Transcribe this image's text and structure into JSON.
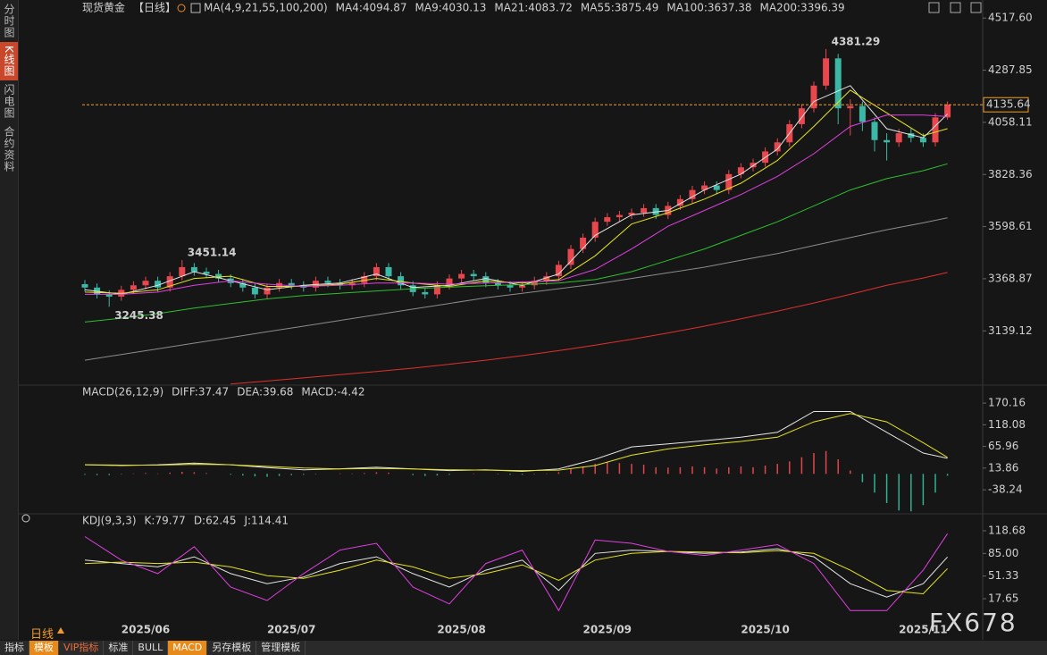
{
  "sidebar": [
    "分时图",
    "K线图",
    "闪电图",
    "合约资料"
  ],
  "period_label": "日线",
  "toolbar": [
    "指标",
    "模板",
    "VIP指标",
    "标准",
    "BULL",
    "MACD",
    "另存模板",
    "管理模板"
  ],
  "watermark": "FX678",
  "chart_data": [
    {
      "type": "candlestick",
      "title": "现货黄金",
      "subtitle": "【日线】",
      "indicator": "MA(4,9,21,55,100,200)",
      "categories": [
        null,
        null,
        null,
        null,
        null,
        "2025/06",
        null,
        null,
        null,
        null,
        null,
        null,
        null,
        null,
        null,
        null,
        null,
        "2025/07",
        null,
        null,
        null,
        null,
        null,
        null,
        null,
        null,
        null,
        null,
        null,
        null,
        null,
        "2025/08",
        null,
        null,
        null,
        null,
        null,
        null,
        null,
        null,
        null,
        null,
        null,
        "2025/09",
        null,
        null,
        null,
        null,
        null,
        null,
        null,
        null,
        null,
        null,
        null,
        null,
        "2025/10",
        null,
        null,
        null,
        null,
        null,
        null,
        null,
        null,
        null,
        null,
        null,
        null,
        "2025/11",
        null,
        null
      ],
      "candles": {
        "open": [
          3345,
          3330,
          3300,
          3290,
          3320,
          3340,
          3360,
          3330,
          3380,
          3420,
          3400,
          3390,
          3370,
          3350,
          3330,
          3300,
          3330,
          3350,
          3340,
          3330,
          3360,
          3350,
          3340,
          3350,
          3380,
          3420,
          3380,
          3340,
          3310,
          3300,
          3340,
          3370,
          3390,
          3380,
          3350,
          3340,
          3330,
          3340,
          3360,
          3380,
          3430,
          3500,
          3550,
          3620,
          3640,
          3650,
          3660,
          3680,
          3650,
          3690,
          3720,
          3760,
          3780,
          3760,
          3830,
          3860,
          3880,
          3930,
          3970,
          4050,
          4120,
          4220,
          4340,
          4120,
          4130,
          4060,
          3980,
          3970,
          4010,
          3990,
          3970,
          4080
        ],
        "high": [
          3363,
          3348,
          3318,
          3338,
          3358,
          3378,
          3378,
          3398,
          3451.14,
          3438,
          3418,
          3408,
          3388,
          3368,
          3348,
          3348,
          3368,
          3368,
          3358,
          3378,
          3378,
          3368,
          3368,
          3398,
          3438,
          3438,
          3398,
          3358,
          3328,
          3358,
          3388,
          3408,
          3408,
          3398,
          3368,
          3358,
          3358,
          3378,
          3398,
          3448,
          3518,
          3568,
          3638,
          3658,
          3668,
          3678,
          3698,
          3698,
          3708,
          3738,
          3778,
          3798,
          3798,
          3848,
          3878,
          3898,
          3948,
          3988,
          4068,
          4138,
          4238,
          4381.29,
          4360,
          4160,
          4150,
          4080,
          4010,
          4030,
          4030,
          4010,
          4098,
          4150
        ],
        "low": [
          3312,
          3282,
          3245.38,
          3272,
          3302,
          3322,
          3312,
          3312,
          3362,
          3382,
          3372,
          3352,
          3332,
          3312,
          3282,
          3282,
          3312,
          3322,
          3312,
          3312,
          3332,
          3322,
          3322,
          3332,
          3362,
          3362,
          3322,
          3292,
          3282,
          3282,
          3322,
          3352,
          3362,
          3332,
          3322,
          3312,
          3312,
          3322,
          3342,
          3362,
          3412,
          3482,
          3532,
          3602,
          3622,
          3632,
          3642,
          3632,
          3632,
          3672,
          3702,
          3742,
          3742,
          3742,
          3812,
          3842,
          3862,
          3912,
          3952,
          4032,
          4102,
          4202,
          4050,
          4000,
          4020,
          3930,
          3890,
          3950,
          3970,
          3950,
          3952,
          4070
        ],
        "close": [
          3330,
          3300,
          3290,
          3320,
          3340,
          3360,
          3330,
          3380,
          3420,
          3400,
          3390,
          3370,
          3350,
          3330,
          3300,
          3330,
          3350,
          3340,
          3330,
          3360,
          3350,
          3340,
          3350,
          3380,
          3420,
          3380,
          3340,
          3310,
          3300,
          3340,
          3370,
          3390,
          3380,
          3350,
          3340,
          3330,
          3340,
          3360,
          3380,
          3430,
          3500,
          3550,
          3620,
          3640,
          3650,
          3660,
          3680,
          3650,
          3690,
          3720,
          3760,
          3780,
          3760,
          3830,
          3860,
          3880,
          3930,
          3970,
          4050,
          4120,
          4220,
          4340,
          4120,
          4130,
          4060,
          3980,
          3970,
          4010,
          3990,
          3970,
          4080,
          4135.64
        ],
        "up_color": "#e8474e",
        "down_color": "#3cb8a6"
      },
      "x": [
        0,
        3,
        6,
        9,
        12,
        15,
        18,
        21,
        24,
        27,
        30,
        33,
        36,
        39,
        42,
        45,
        48,
        51,
        54,
        57,
        60,
        63,
        66,
        69,
        71
      ],
      "series": [
        {
          "name": "MA4:4094.87",
          "color": "#e6e6e6",
          "values": [
            3320,
            3300,
            3340,
            3400,
            3360,
            3320,
            3340,
            3350,
            3390,
            3330,
            3340,
            3370,
            3340,
            3390,
            3560,
            3650,
            3670,
            3760,
            3830,
            3940,
            4150,
            4220,
            4030,
            3990,
            4094.87
          ]
        },
        {
          "name": "MA9:4030.13",
          "color": "#e6e31e",
          "values": [
            3310,
            3305,
            3320,
            3370,
            3380,
            3335,
            3335,
            3345,
            3370,
            3350,
            3335,
            3360,
            3350,
            3365,
            3470,
            3610,
            3660,
            3720,
            3790,
            3890,
            4040,
            4200,
            4100,
            4000,
            4030.13
          ]
        },
        {
          "name": "MA21:4083.72",
          "color": "#e040e0",
          "values": [
            3300,
            3300,
            3310,
            3340,
            3360,
            3345,
            3335,
            3340,
            3350,
            3350,
            3345,
            3350,
            3355,
            3360,
            3410,
            3500,
            3600,
            3670,
            3740,
            3820,
            3920,
            4040,
            4090,
            4090,
            4083.72
          ]
        },
        {
          "name": "MA55:3875.49",
          "color": "#2ec02e",
          "values": [
            3178,
            3195,
            3215,
            3240,
            3260,
            3280,
            3295,
            3305,
            3315,
            3325,
            3332,
            3338,
            3343,
            3350,
            3365,
            3400,
            3450,
            3500,
            3560,
            3620,
            3690,
            3760,
            3810,
            3845,
            3875.49
          ]
        },
        {
          "name": "MA100:3637.38",
          "color": "#8c8c8c",
          "values": [
            3010,
            3035,
            3060,
            3085,
            3110,
            3135,
            3160,
            3185,
            3210,
            3235,
            3260,
            3285,
            3305,
            3325,
            3345,
            3370,
            3395,
            3420,
            3450,
            3480,
            3515,
            3550,
            3585,
            3615,
            3637.38
          ]
        },
        {
          "name": "MA200:3396.39",
          "color": "#e03030",
          "values": [
            null,
            null,
            null,
            null,
            2905,
            2918,
            2932,
            2946,
            2960,
            2975,
            2992,
            3010,
            3030,
            3052,
            3076,
            3102,
            3130,
            3160,
            3192,
            3226,
            3262,
            3300,
            3340,
            3372,
            3396.39
          ]
        }
      ],
      "annotations": [
        {
          "x": 61,
          "value": 4381.29,
          "color": "#ff5555"
        },
        {
          "x": 8,
          "value": 3451.14,
          "color": "#ff5555"
        },
        {
          "x": 2,
          "value": 3245.38,
          "color": "#35c46a"
        }
      ],
      "last_price": 4135.64,
      "last_price_color": "#f0a030",
      "ylim": [
        2900,
        4550
      ],
      "yticks": [
        {
          "value": 4517.6,
          "label": "4517.60"
        },
        4287.85,
        4058.11,
        3828.36,
        3598.61,
        3368.87,
        3139.12
      ],
      "grid": false
    },
    {
      "type": "macd",
      "title": "MACD(26,12,9)",
      "x": [
        0,
        3,
        6,
        9,
        12,
        15,
        18,
        21,
        24,
        27,
        30,
        33,
        36,
        39,
        42,
        45,
        48,
        51,
        54,
        57,
        60,
        63,
        66,
        69,
        71
      ],
      "series": [
        {
          "name": "DIFF:37.47",
          "color": "#e6e6e6",
          "values": [
            22,
            20,
            22,
            26,
            22,
            15,
            10,
            12,
            16,
            12,
            8,
            10,
            6,
            12,
            35,
            65,
            72,
            80,
            88,
            100,
            150,
            150,
            100,
            50,
            37.47
          ]
        },
        {
          "name": "DEA:39.68",
          "color": "#e6e31e",
          "values": [
            22,
            21,
            21,
            23,
            22,
            18,
            14,
            12,
            13,
            12,
            10,
            9,
            8,
            9,
            20,
            45,
            60,
            70,
            78,
            88,
            125,
            145,
            125,
            75,
            39.68
          ]
        }
      ],
      "histogram": {
        "name": "MACD:-4.42",
        "color": "#e040e0",
        "up_color": "#e0474c",
        "down_color": "#2fb38f",
        "values": [
          -2,
          -3,
          -3,
          -1,
          1,
          2,
          1,
          3,
          5,
          4,
          2,
          0,
          -2,
          -4,
          -6,
          -7,
          -5,
          -3,
          -2,
          -1,
          0,
          1,
          1,
          2,
          4,
          3,
          0,
          -3,
          -5,
          -4,
          -2,
          0,
          1,
          0,
          -1,
          -2,
          -2,
          -1,
          1,
          4,
          12,
          18,
          24,
          28,
          26,
          24,
          22,
          16,
          15,
          16,
          18,
          16,
          13,
          16,
          18,
          16,
          20,
          24,
          30,
          40,
          50,
          55,
          35,
          8,
          -20,
          -45,
          -70,
          -88,
          -90,
          -75,
          -45,
          -4.42
        ]
      },
      "ylim": [
        -96,
        194
      ],
      "yticks": [
        170.16,
        118.08,
        65.96,
        13.86,
        -38.24
      ],
      "grid": false
    },
    {
      "type": "line",
      "title": "KDJ(9,3,3)",
      "x": [
        0,
        3,
        6,
        9,
        12,
        15,
        18,
        21,
        24,
        27,
        30,
        33,
        36,
        39,
        42,
        45,
        48,
        51,
        54,
        57,
        60,
        63,
        66,
        69,
        71
      ],
      "series": [
        {
          "name": "K:79.77",
          "color": "#e6e6e6",
          "values": [
            75,
            70,
            65,
            80,
            55,
            40,
            50,
            70,
            80,
            55,
            35,
            60,
            75,
            30,
            85,
            90,
            88,
            85,
            87,
            92,
            80,
            40,
            20,
            40,
            79.77
          ]
        },
        {
          "name": "D:62.45",
          "color": "#e6e31e",
          "values": [
            70,
            72,
            70,
            72,
            65,
            52,
            48,
            60,
            75,
            65,
            48,
            55,
            68,
            45,
            75,
            85,
            88,
            87,
            86,
            89,
            85,
            60,
            30,
            25,
            62.45
          ]
        },
        {
          "name": "J:114.41",
          "color": "#e040e0",
          "values": [
            110,
            75,
            55,
            95,
            35,
            15,
            55,
            90,
            100,
            35,
            10,
            70,
            90,
            0,
            105,
            100,
            88,
            82,
            90,
            98,
            70,
            0,
            0,
            60,
            114.41
          ]
        }
      ],
      "ylim": [
        -22.2,
        130.6
      ],
      "yticks": [
        118.68,
        {
          "value": 85,
          "label": "85.00"
        },
        51.33,
        17.65
      ],
      "grid": false
    }
  ]
}
